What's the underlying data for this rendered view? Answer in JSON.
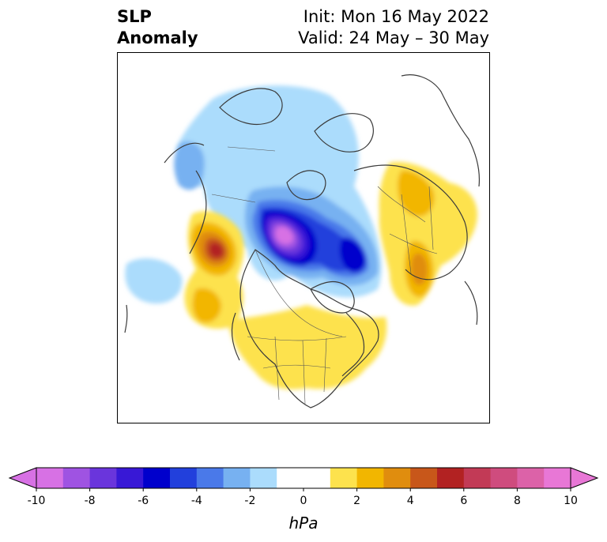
{
  "header": {
    "title_line1": "SLP",
    "title_line2": "Anomaly",
    "init": "Init: Mon 16 May 2022",
    "valid": "Valid: 24 May – 30 May"
  },
  "colorbar": {
    "label": "hPa",
    "ticks": [
      "-10",
      "-8",
      "-6",
      "-4",
      "-2",
      "0",
      "2",
      "4",
      "6",
      "8",
      "10"
    ],
    "colors": [
      "#d771e4",
      "#9f53e2",
      "#6a35dc",
      "#3818d6",
      "#0000cc",
      "#2240dc",
      "#4a79e9",
      "#77b1f1",
      "#abdcfc",
      "#ffffff",
      "#ffffff",
      "#fde24d",
      "#f2b600",
      "#e08d0e",
      "#c8571a",
      "#b22222",
      "#c23a56",
      "#cf4c7e",
      "#dc62a8",
      "#e877d6"
    ],
    "extend_low": "#d771e4",
    "extend_high": "#e877d6"
  }
}
